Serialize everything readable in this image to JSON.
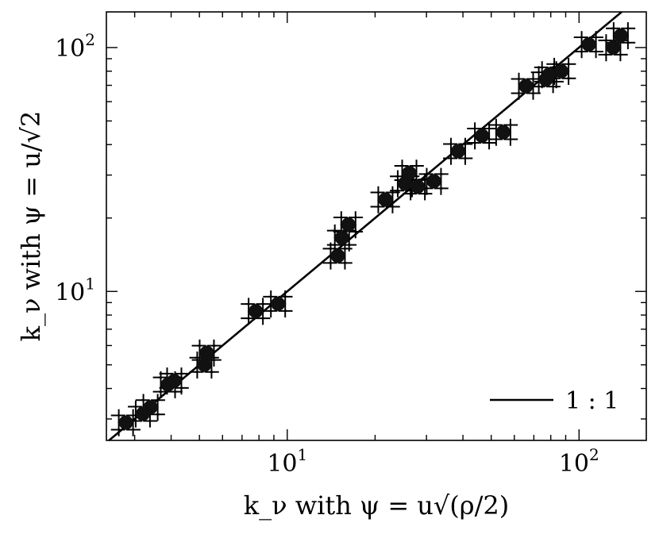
{
  "chart_data": {
    "type": "scatter",
    "xscale": "log",
    "yscale": "log",
    "xlim": [
      2.4,
      170
    ],
    "ylim": [
      2.45,
      140
    ],
    "xlabel": "k_ν with ψ = u√(ρ/2)",
    "ylabel": "k_ν with ψ = u/√2",
    "x_major_ticks": [
      {
        "value": 10,
        "base": "10",
        "exp": "1"
      },
      {
        "value": 100,
        "base": "10",
        "exp": "2"
      }
    ],
    "y_major_ticks": [
      {
        "value": 10,
        "base": "10",
        "exp": "1"
      },
      {
        "value": 100,
        "base": "10",
        "exp": "2"
      }
    ],
    "grid": false,
    "legend": {
      "position": "bottom-right",
      "entries": [
        {
          "label": "1 : 1",
          "style": "line"
        }
      ]
    },
    "reference_line": {
      "label": "1 : 1",
      "slope": 1
    },
    "error_relative": 0.06,
    "points": [
      {
        "x": 2.8,
        "y": 2.9
      },
      {
        "x": 3.2,
        "y": 3.15
      },
      {
        "x": 3.4,
        "y": 3.35
      },
      {
        "x": 3.9,
        "y": 4.15
      },
      {
        "x": 4.1,
        "y": 4.3
      },
      {
        "x": 5.2,
        "y": 5.0
      },
      {
        "x": 5.3,
        "y": 5.6
      },
      {
        "x": 7.8,
        "y": 8.3
      },
      {
        "x": 9.3,
        "y": 8.9
      },
      {
        "x": 14.9,
        "y": 14.0
      },
      {
        "x": 15.4,
        "y": 16.6
      },
      {
        "x": 16.2,
        "y": 18.8
      },
      {
        "x": 21.7,
        "y": 23.8
      },
      {
        "x": 25.3,
        "y": 27.7
      },
      {
        "x": 26.2,
        "y": 30.6
      },
      {
        "x": 28.0,
        "y": 26.9
      },
      {
        "x": 31.8,
        "y": 28.3
      },
      {
        "x": 38.5,
        "y": 37.6
      },
      {
        "x": 46.5,
        "y": 43.5
      },
      {
        "x": 55.0,
        "y": 45.0
      },
      {
        "x": 65.8,
        "y": 69.5
      },
      {
        "x": 77.0,
        "y": 74.0
      },
      {
        "x": 79.0,
        "y": 77.5
      },
      {
        "x": 87.0,
        "y": 80.0
      },
      {
        "x": 108.0,
        "y": 103.0
      },
      {
        "x": 131.0,
        "y": 100.0
      },
      {
        "x": 139.0,
        "y": 112.0
      }
    ]
  }
}
